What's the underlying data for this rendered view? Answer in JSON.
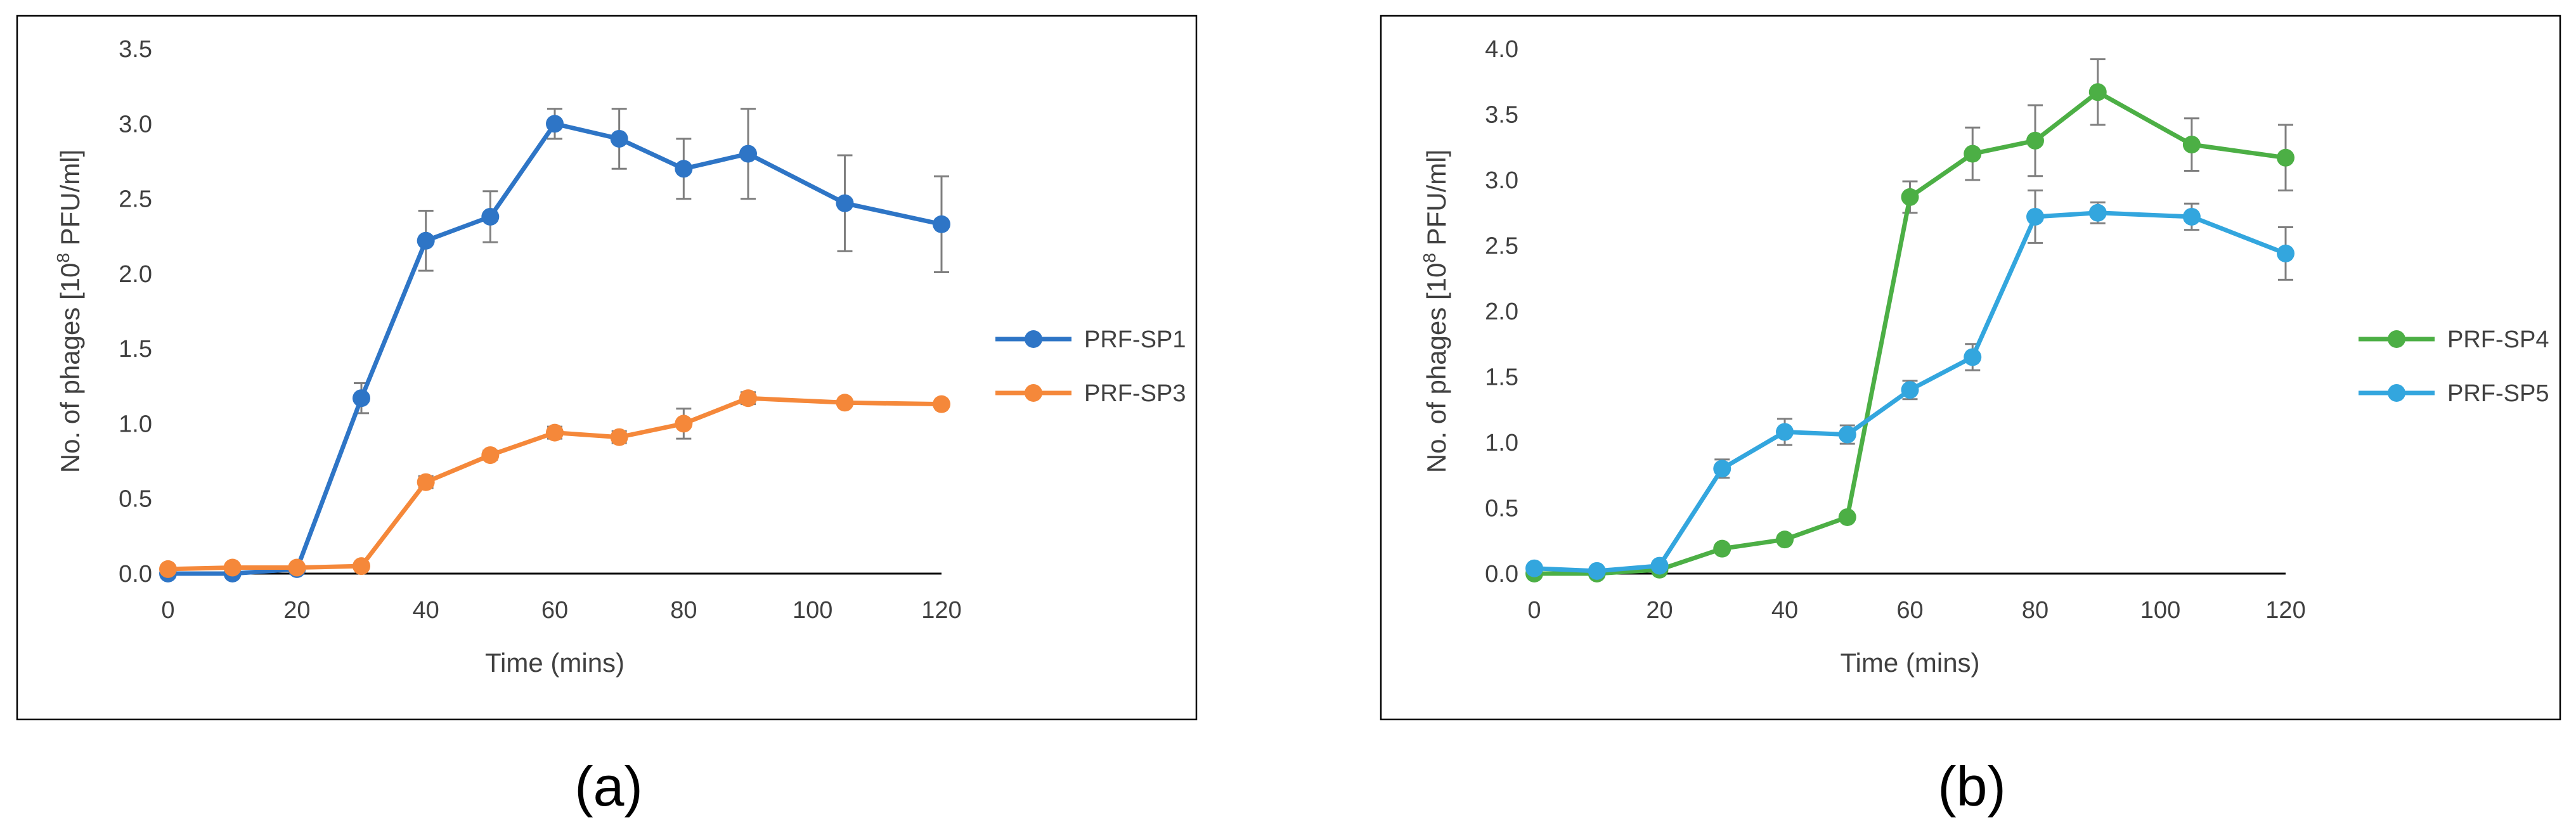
{
  "chart_data": [
    {
      "type": "line",
      "caption": "(a)",
      "title": "",
      "xlabel": "Time (mins)",
      "ylabel_prefix": "No. of phages [10",
      "ylabel_sup": "8",
      "ylabel_suffix": " PFU/ml]",
      "xlim": [
        0,
        120
      ],
      "ylim": [
        0,
        3.5
      ],
      "xticks": [
        0,
        20,
        40,
        60,
        80,
        100,
        120
      ],
      "yticks": [
        0.0,
        0.5,
        1.0,
        1.5,
        2.0,
        2.5,
        3.0,
        3.5
      ],
      "ytick_labels": [
        "0.0",
        "0.5",
        "1.0",
        "1.5",
        "2.0",
        "2.5",
        "3.0",
        "3.5"
      ],
      "grid": false,
      "legend": "right",
      "series": [
        {
          "name": "PRF-SP1",
          "color": "#2E75C6",
          "x": [
            0,
            10,
            20,
            30,
            40,
            50,
            60,
            70,
            80,
            90,
            105,
            120
          ],
          "y": [
            0.0,
            0.0,
            0.03,
            1.17,
            2.22,
            2.38,
            3.0,
            2.9,
            2.7,
            2.8,
            2.47,
            2.33
          ],
          "err": [
            0.0,
            0.0,
            0.0,
            0.1,
            0.2,
            0.17,
            0.1,
            0.2,
            0.2,
            0.3,
            0.32,
            0.32
          ]
        },
        {
          "name": "PRF-SP3",
          "color": "#F5883A",
          "x": [
            0,
            10,
            20,
            30,
            40,
            50,
            60,
            70,
            80,
            90,
            105,
            120
          ],
          "y": [
            0.03,
            0.04,
            0.04,
            0.05,
            0.61,
            0.79,
            0.94,
            0.91,
            1.0,
            1.17,
            1.14,
            1.13
          ],
          "err": [
            0.0,
            0.0,
            0.0,
            0.0,
            0.04,
            0.03,
            0.04,
            0.04,
            0.1,
            0.04,
            0.02,
            0.02
          ]
        }
      ]
    },
    {
      "type": "line",
      "caption": "(b)",
      "title": "",
      "xlabel": "Time (mins)",
      "ylabel_prefix": "No. of phages [10",
      "ylabel_sup": "8",
      "ylabel_suffix": " PFU/ml]",
      "xlim": [
        0,
        120
      ],
      "ylim": [
        0,
        4.0
      ],
      "xticks": [
        0,
        20,
        40,
        60,
        80,
        100,
        120
      ],
      "yticks": [
        0.0,
        0.5,
        1.0,
        1.5,
        2.0,
        2.5,
        3.0,
        3.5,
        4.0
      ],
      "ytick_labels": [
        "0.0",
        "0.5",
        "1.0",
        "1.5",
        "2.0",
        "2.5",
        "3.0",
        "3.5",
        "4.0"
      ],
      "grid": false,
      "legend": "right",
      "series": [
        {
          "name": "PRF-SP4",
          "color": "#4CAF45",
          "x": [
            0,
            10,
            20,
            30,
            40,
            50,
            60,
            70,
            80,
            90,
            105,
            120
          ],
          "y": [
            0.0,
            0.0,
            0.03,
            0.19,
            0.26,
            0.43,
            2.87,
            3.2,
            3.3,
            3.67,
            3.27,
            3.17
          ],
          "err": [
            0.0,
            0.0,
            0.0,
            0.0,
            0.0,
            0.0,
            0.12,
            0.2,
            0.27,
            0.25,
            0.2,
            0.25
          ]
        },
        {
          "name": "PRF-SP5",
          "color": "#33A6DE",
          "x": [
            0,
            10,
            20,
            30,
            40,
            50,
            60,
            70,
            80,
            90,
            105,
            120
          ],
          "y": [
            0.04,
            0.02,
            0.06,
            0.8,
            1.08,
            1.06,
            1.4,
            1.65,
            2.72,
            2.75,
            2.72,
            2.44
          ],
          "err": [
            0.0,
            0.0,
            0.0,
            0.07,
            0.1,
            0.07,
            0.07,
            0.1,
            0.2,
            0.08,
            0.1,
            0.2
          ]
        }
      ]
    }
  ]
}
